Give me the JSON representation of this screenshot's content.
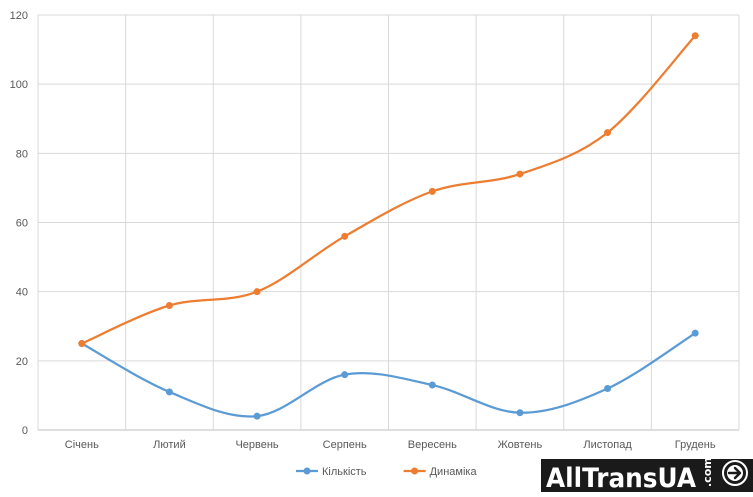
{
  "chart_data": {
    "type": "line",
    "title": "",
    "xlabel": "",
    "ylabel": "",
    "categories": [
      "Січень",
      "Лютий",
      "Червень",
      "Серпень",
      "Вересень",
      "Жовтень",
      "Листопад",
      "Грудень"
    ],
    "series": [
      {
        "name": "Кількість",
        "values": [
          25,
          11,
          4,
          16,
          13,
          5,
          12,
          28
        ],
        "color": "#5b9bd5"
      },
      {
        "name": "Динаміка",
        "values": [
          25,
          36,
          40,
          56,
          69,
          74,
          86,
          114
        ],
        "color": "#ed7d31"
      }
    ],
    "ylim": [
      0,
      120
    ],
    "yticks": [
      "0",
      "20",
      "40",
      "60",
      "80",
      "100",
      "120"
    ],
    "grid": true,
    "smooth": true,
    "legend": "bottom"
  },
  "watermark": {
    "text": "AllTransUA",
    "domain": ".com",
    "icon": "arrow-circle-icon",
    "background": "#1a1a1a"
  }
}
